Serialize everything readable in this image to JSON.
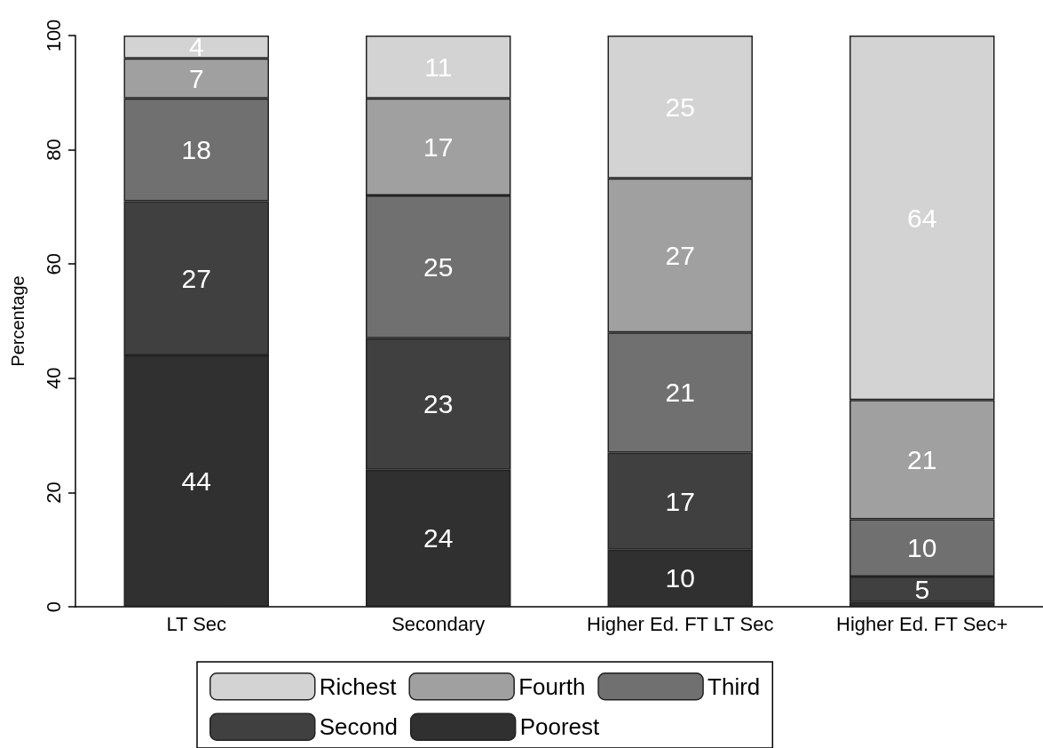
{
  "chart_data": {
    "type": "bar",
    "stacked": true,
    "ylabel": "Percentage",
    "categories": [
      "LT Sec",
      "Secondary",
      "Higher Ed. FT LT Sec",
      "Higher Ed. FT Sec+"
    ],
    "series": [
      {
        "name": "Poorest",
        "color": "#303030",
        "values": [
          44,
          24,
          10,
          0.8
        ],
        "value_labels": [
          "44",
          "24",
          "10",
          null
        ]
      },
      {
        "name": "Second",
        "color": "#404040",
        "values": [
          27,
          23,
          17,
          4.5
        ],
        "value_labels": [
          "27",
          "23",
          "17",
          "5"
        ]
      },
      {
        "name": "Third",
        "color": "#707070",
        "values": [
          18,
          25,
          21,
          10
        ],
        "value_labels": [
          "18",
          "25",
          "21",
          "10"
        ]
      },
      {
        "name": "Fourth",
        "color": "#a0a0a0",
        "values": [
          7,
          17,
          27,
          20.9
        ],
        "value_labels": [
          "7",
          "17",
          "27",
          "21"
        ]
      },
      {
        "name": "Richest",
        "color": "#d3d3d3",
        "values": [
          4,
          11,
          25,
          63.8
        ],
        "value_labels": [
          "4",
          "11",
          "25",
          "64"
        ]
      }
    ],
    "ylim": [
      0,
      100
    ],
    "yticks": [
      0,
      20,
      40,
      60,
      80,
      100
    ],
    "grid": false,
    "legend": "bottom"
  }
}
